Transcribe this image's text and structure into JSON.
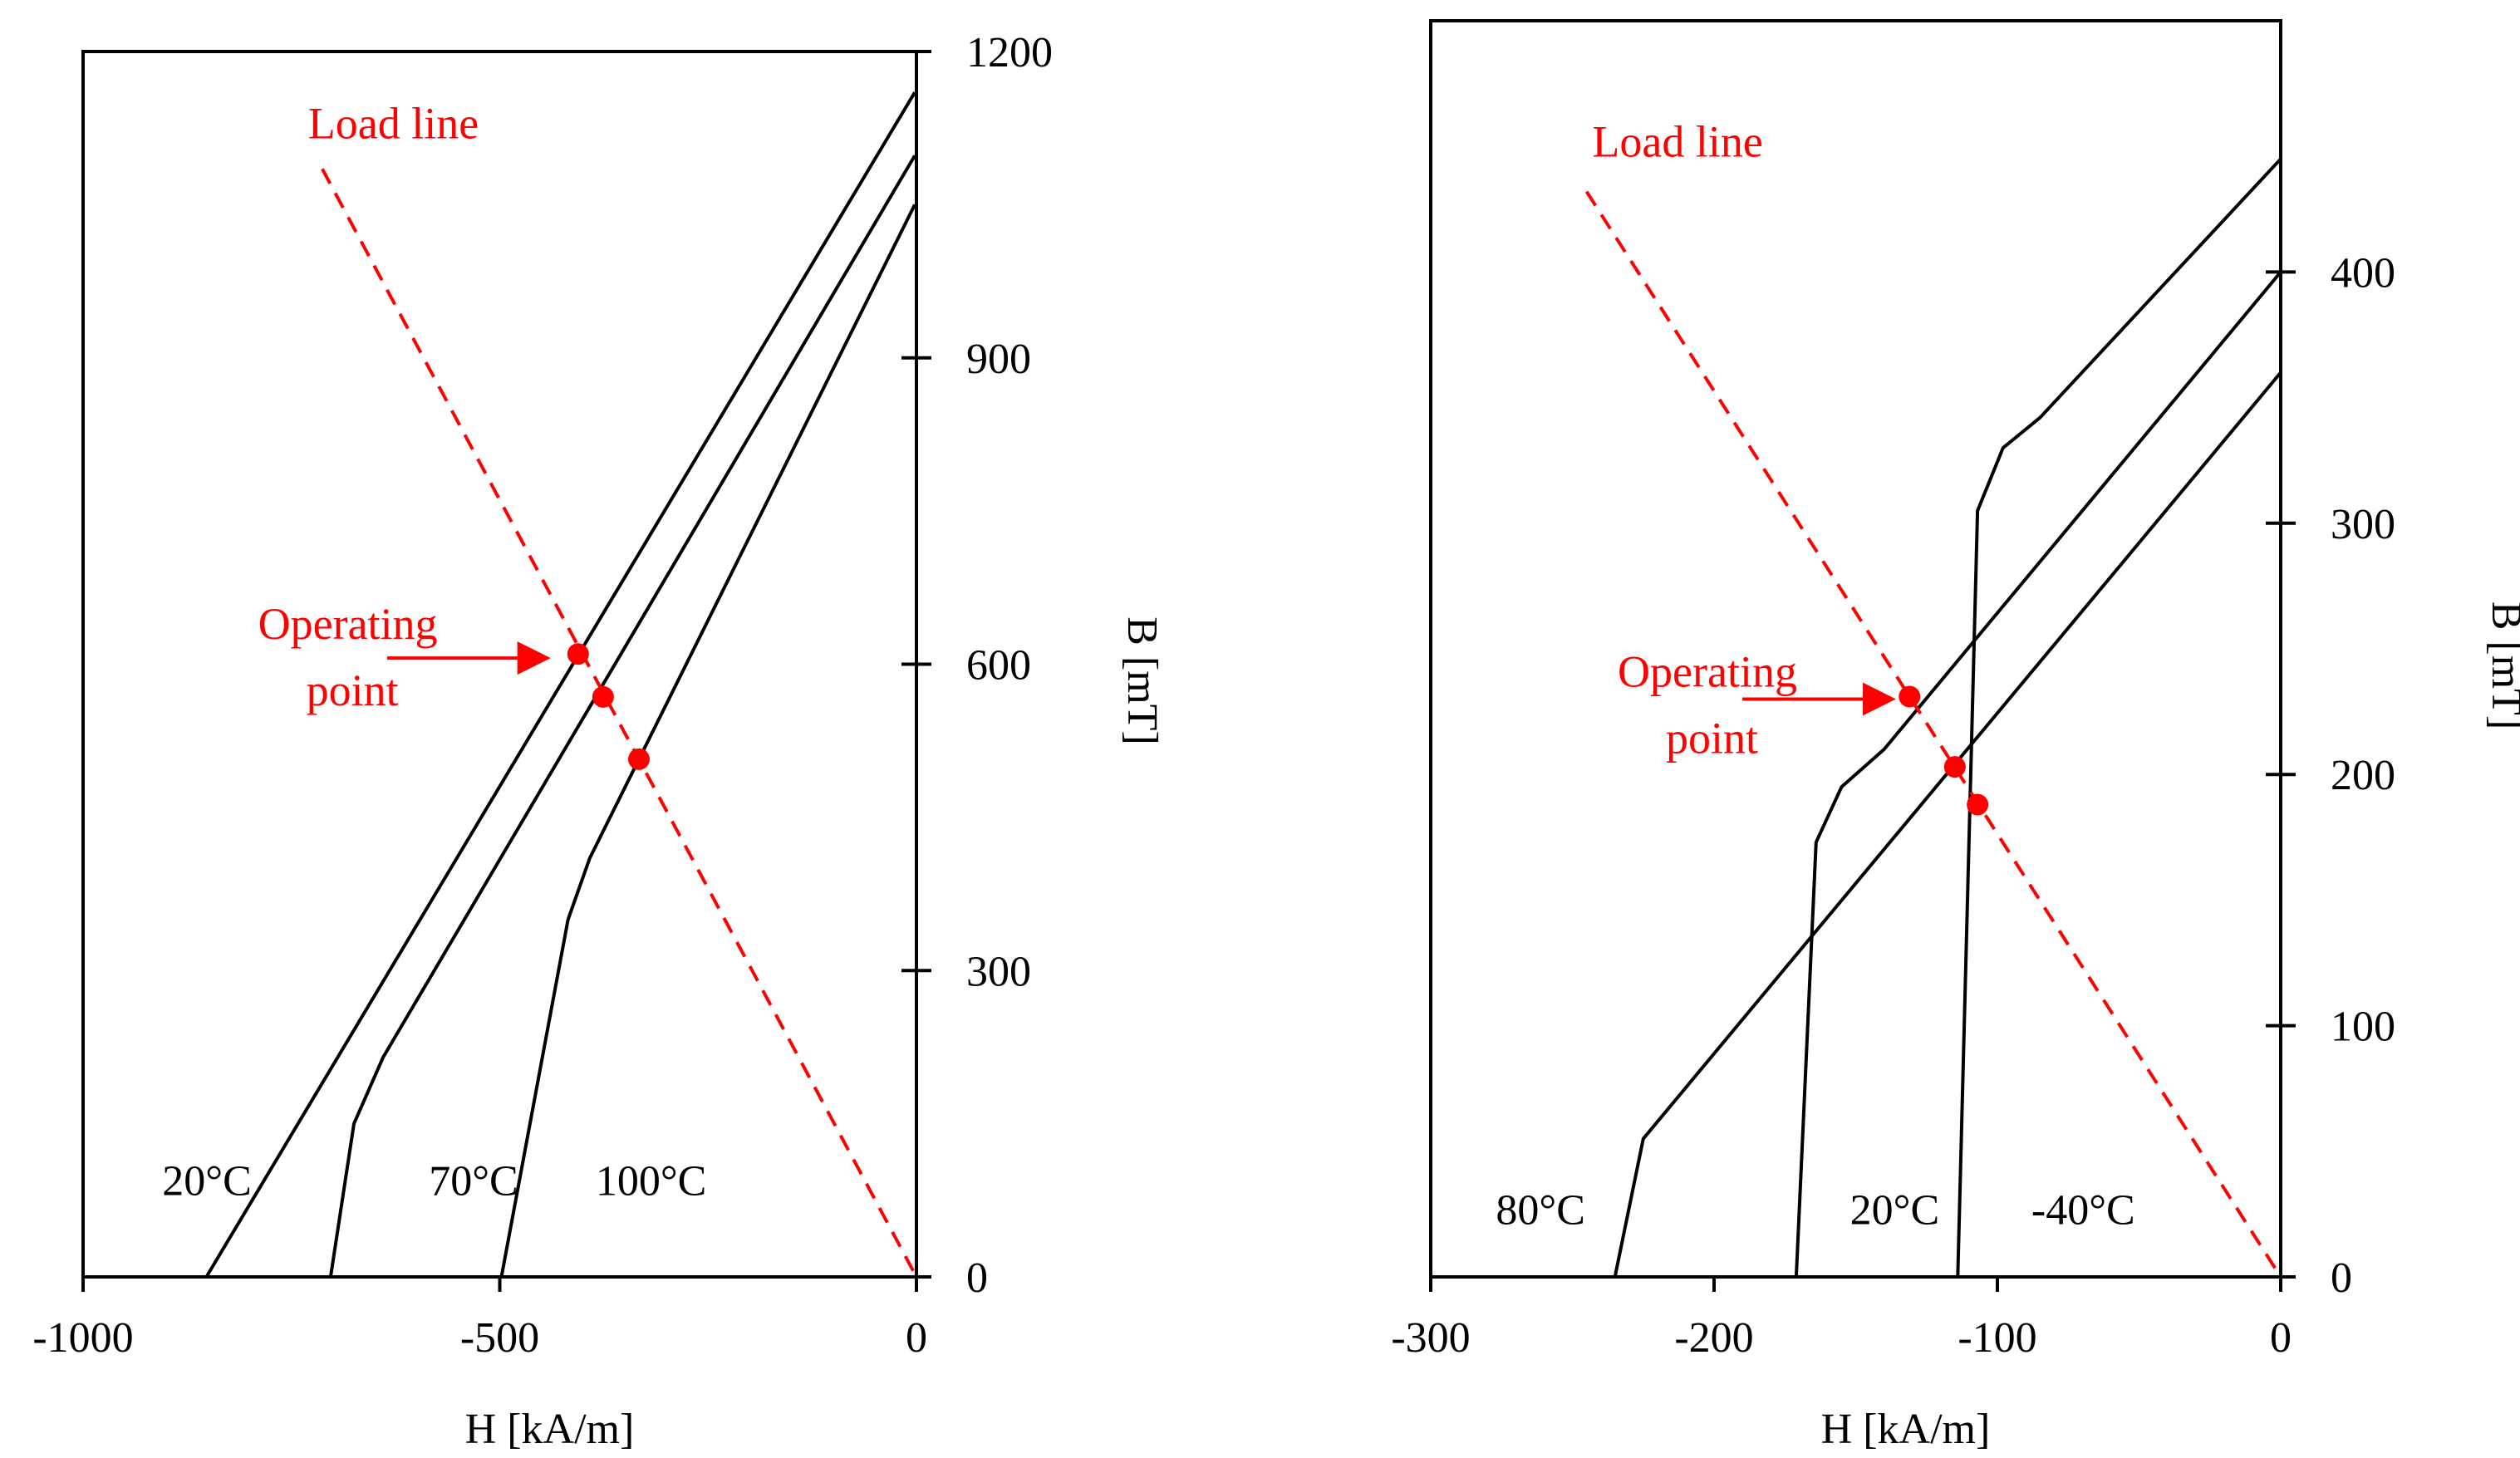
{
  "chart_data": [
    {
      "type": "line",
      "xlabel": "H [kA/m]",
      "ylabel": "B [mT]",
      "xlim": [
        -1000,
        0
      ],
      "ylim": [
        0,
        1200
      ],
      "xticks": [
        -1000,
        -500,
        0
      ],
      "xtick_labels": [
        "-1000",
        "-500",
        "0"
      ],
      "yticks": [
        0,
        300,
        600,
        900,
        1200
      ],
      "ytick_labels": [
        "0",
        "300",
        "600",
        "900",
        "1200"
      ],
      "series": [
        {
          "name": "20°C",
          "label": "20°C",
          "label_at": [
            -905,
            80
          ],
          "points": [
            [
              -852,
              0
            ],
            [
              -2,
              1160
            ]
          ]
        },
        {
          "name": "70°C",
          "label": "70°C",
          "label_at": [
            -585,
            80
          ],
          "points": [
            [
              -703,
              0
            ],
            [
              -675,
              150
            ],
            [
              -640,
              215
            ],
            [
              -2,
              1098
            ]
          ]
        },
        {
          "name": "100°C",
          "label": "100°C",
          "label_at": [
            -385,
            80
          ],
          "points": [
            [
              -498,
              0
            ],
            [
              -418,
              350
            ],
            [
              -392,
              410
            ],
            [
              -2,
              1050
            ]
          ]
        }
      ],
      "load_line": {
        "label": "Load line",
        "label_at": [
          -730,
          1115
        ],
        "points": [
          [
            -713,
            1085
          ],
          [
            0,
            0
          ]
        ]
      },
      "operating_points": [
        [
          -406,
          610
        ],
        [
          -376,
          568
        ],
        [
          -333,
          507
        ]
      ],
      "annotation": {
        "line1": "Operating",
        "line2": "point",
        "text_at": [
          -790,
          625
        ],
        "arrow_from": [
          -635,
          606
        ],
        "arrow_to": [
          -443,
          606
        ]
      }
    },
    {
      "type": "line",
      "xlabel": "H [kA/m]",
      "ylabel": "B [mT]",
      "xlim": [
        -300,
        0
      ],
      "ylim": [
        0,
        500
      ],
      "xticks": [
        -300,
        -200,
        -100,
        0
      ],
      "xtick_labels": [
        "-300",
        "-200",
        "-100",
        "0"
      ],
      "yticks": [
        0,
        100,
        200,
        300,
        400
      ],
      "ytick_labels": [
        "0",
        "100",
        "200",
        "300",
        "400"
      ],
      "series": [
        {
          "name": "80°C",
          "label": "80°C",
          "label_at": [
            -277,
            21
          ],
          "points": [
            [
              -235,
              0
            ],
            [
              -225,
              55
            ],
            [
              0,
              360
            ]
          ]
        },
        {
          "name": "20°C",
          "label": "20°C",
          "label_at": [
            -152,
            21
          ],
          "points": [
            [
              -171,
              0
            ],
            [
              -164,
              173
            ],
            [
              -155,
              195
            ],
            [
              -140,
              210
            ],
            [
              0,
              400
            ]
          ]
        },
        {
          "name": "-40°C",
          "label": "-40°C",
          "label_at": [
            -88,
            21
          ],
          "points": [
            [
              -114,
              0
            ],
            [
              -107,
              305
            ],
            [
              -98,
              330
            ],
            [
              -85,
              342
            ],
            [
              0,
              445
            ]
          ]
        }
      ],
      "load_line": {
        "label": "Load line",
        "label_at": [
          -243,
          446
        ],
        "points": [
          [
            -245,
            432
          ],
          [
            0,
            0
          ]
        ]
      },
      "operating_points": [
        [
          -131,
          231
        ],
        [
          -115,
          203
        ],
        [
          -107,
          188
        ]
      ],
      "annotation": {
        "line1": "Operating",
        "line2": "point",
        "text_at": [
          -234,
          235
        ],
        "arrow_from": [
          -190,
          230
        ],
        "arrow_to": [
          -137,
          230
        ]
      }
    }
  ]
}
